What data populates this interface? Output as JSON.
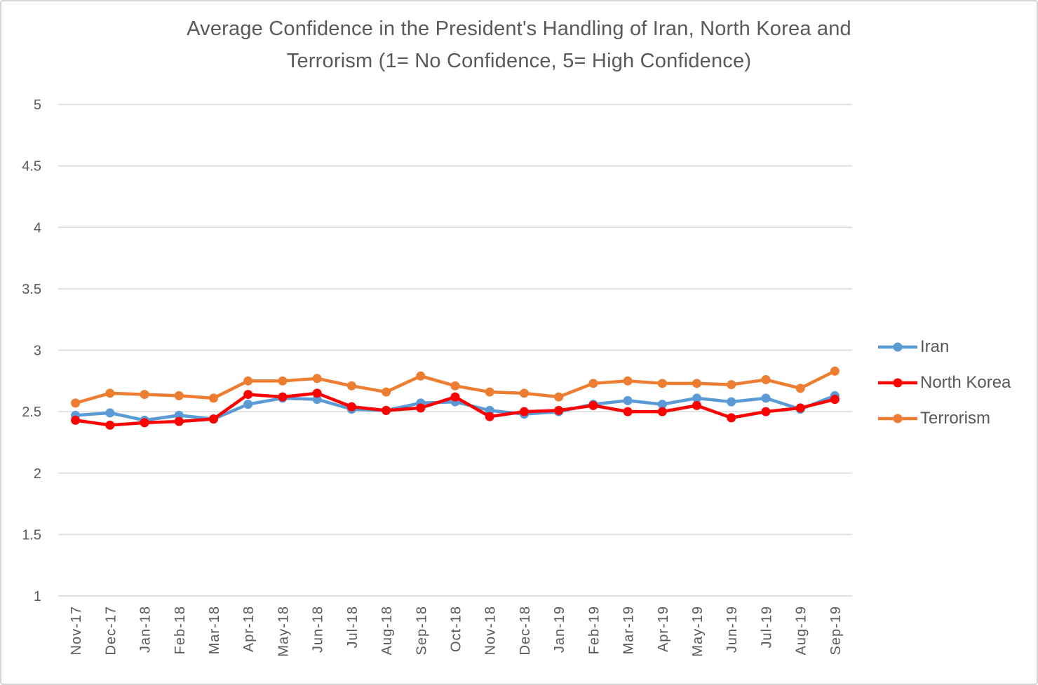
{
  "chart_data": {
    "type": "line",
    "title": "Average Confidence in the President's Handling of Iran, North Korea and Terrorism (1= No Confidence, 5= High Confidence)",
    "title_lines": [
      "Average Confidence in the President's Handling of Iran, North Korea and",
      "Terrorism (1= No Confidence, 5= High Confidence)"
    ],
    "categories": [
      "Nov-17",
      "Dec-17",
      "Jan-18",
      "Feb-18",
      "Mar-18",
      "Apr-18",
      "May-18",
      "Jun-18",
      "Jul-18",
      "Aug-18",
      "Sep-18",
      "Oct-18",
      "Nov-18",
      "Dec-18",
      "Jan-19",
      "Feb-19",
      "Mar-19",
      "Apr-19",
      "May-19",
      "Jun-19",
      "Jul-19",
      "Aug-19",
      "Sep-19"
    ],
    "series": [
      {
        "name": "Iran",
        "color": "#5B9BD5",
        "values": [
          2.47,
          2.49,
          2.43,
          2.47,
          2.44,
          2.56,
          2.61,
          2.6,
          2.52,
          2.51,
          2.57,
          2.58,
          2.51,
          2.48,
          2.5,
          2.56,
          2.59,
          2.56,
          2.61,
          2.58,
          2.61,
          2.52,
          2.63
        ]
      },
      {
        "name": "North Korea",
        "color": "#FF0000",
        "values": [
          2.43,
          2.39,
          2.41,
          2.42,
          2.44,
          2.64,
          2.62,
          2.65,
          2.54,
          2.51,
          2.53,
          2.62,
          2.46,
          2.5,
          2.51,
          2.55,
          2.5,
          2.5,
          2.55,
          2.45,
          2.5,
          2.53,
          2.6
        ]
      },
      {
        "name": "Terrorism",
        "color": "#ED7D31",
        "values": [
          2.57,
          2.65,
          2.64,
          2.63,
          2.61,
          2.75,
          2.75,
          2.77,
          2.71,
          2.66,
          2.79,
          2.71,
          2.66,
          2.65,
          2.62,
          2.73,
          2.75,
          2.73,
          2.73,
          2.72,
          2.76,
          2.69,
          2.83
        ]
      }
    ],
    "ylim": [
      1,
      5
    ],
    "ytick_step": 0.5,
    "ytick_labels": [
      "1",
      "1.5",
      "2",
      "2.5",
      "3",
      "3.5",
      "4",
      "4.5",
      "5"
    ],
    "grid": "horizontal",
    "legend_position": "right",
    "marker": "circle",
    "axis_text_color": "#595959",
    "gridline_color": "#D9D9D9",
    "background_color": "#FFFFFF",
    "border_color": "#D5D5D5"
  }
}
